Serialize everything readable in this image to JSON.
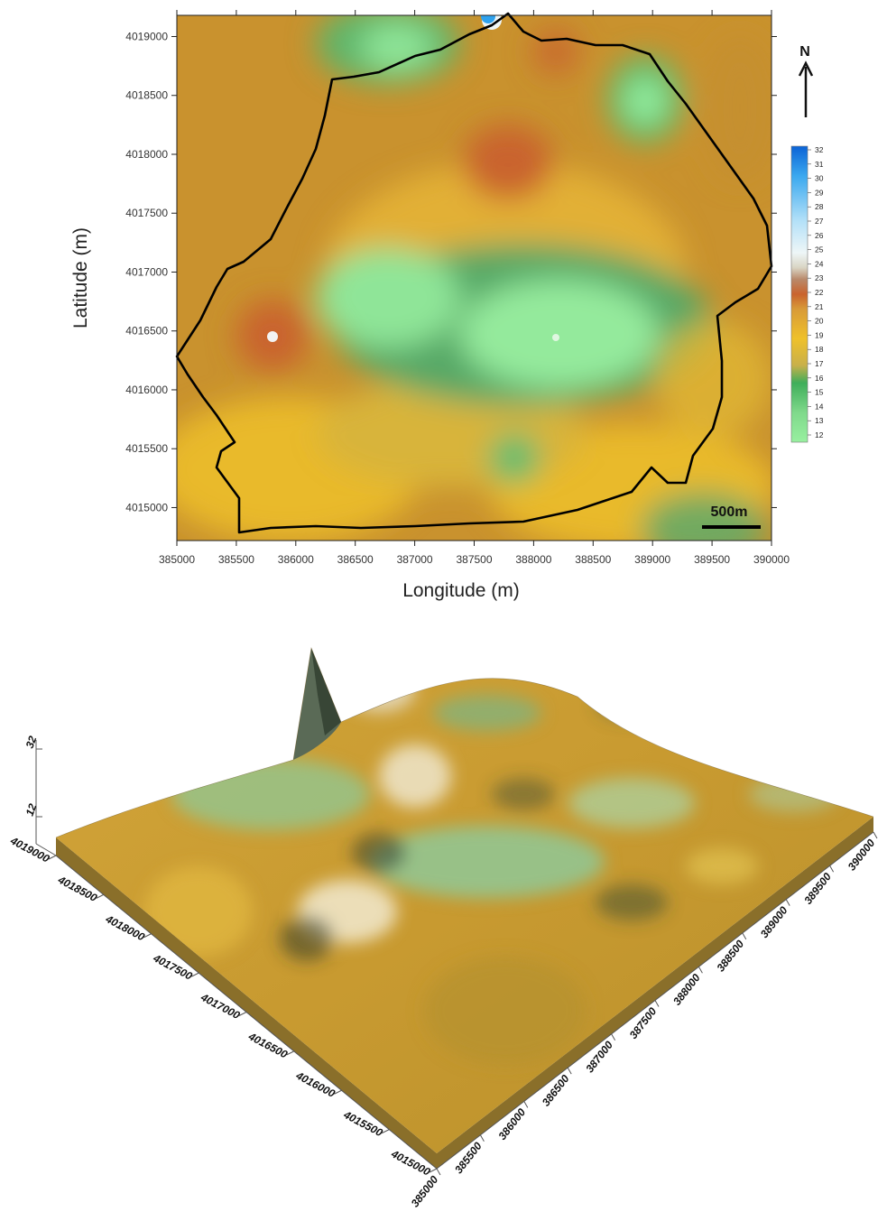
{
  "map_2d": {
    "x_axis_title": "Longitude (m)",
    "y_axis_title": "Latitude (m)",
    "x_ticks": [
      "385000",
      "385500",
      "386000",
      "386500",
      "387000",
      "387500",
      "388000",
      "388500",
      "389000",
      "389500",
      "390000"
    ],
    "y_ticks": [
      "4019000",
      "4018500",
      "4018000",
      "4017500",
      "4017000",
      "4016500",
      "4016000",
      "4015500",
      "4015000"
    ],
    "north_label": "N",
    "scale_bar_label": "500m",
    "legend": {
      "labels": [
        "32",
        "31",
        "30",
        "29",
        "28",
        "27",
        "26",
        "25",
        "24",
        "23",
        "22",
        "21",
        "20",
        "19",
        "18",
        "17",
        "16",
        "15",
        "14",
        "13",
        "12"
      ],
      "colors": [
        "#0b63d6",
        "#1a86e6",
        "#2fa2ee",
        "#55b8f2",
        "#84cdf5",
        "#b2e0f8",
        "#d6eefb",
        "#eef6f7",
        "#d9d5c4",
        "#b9896a",
        "#c9632e",
        "#d4742c",
        "#d89a38",
        "#e8b035",
        "#efc12a",
        "#f0cd20",
        "#c9b04a",
        "#3fae5a",
        "#58bf72",
        "#7fd98b",
        "#98f0a0"
      ]
    },
    "colors": {
      "high": "#c9632e",
      "mid": "#c9922e",
      "low": "#98f0a0",
      "boundary": "#000000"
    }
  },
  "surface_3d": {
    "x_ticks": [
      "385000",
      "385500",
      "386000",
      "386500",
      "387000",
      "387500",
      "388000",
      "388500",
      "389000",
      "389500",
      "390000"
    ],
    "y_ticks": [
      "4015000",
      "4015500",
      "4016000",
      "4016500",
      "4017000",
      "4017500",
      "4018000",
      "4018500",
      "4019000"
    ],
    "z_ticks": [
      "12",
      "32"
    ]
  }
}
